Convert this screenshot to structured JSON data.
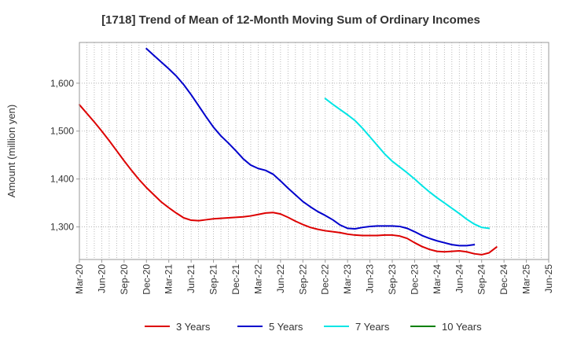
{
  "chart_data": {
    "type": "line",
    "title": "[1718]  Trend of Mean of 12-Month Moving Sum of Ordinary Incomes",
    "xlabel": "",
    "ylabel": "Amount (million yen)",
    "ylim": [
      1232,
      1685
    ],
    "yticks": [
      1300,
      1400,
      1500,
      1600
    ],
    "ytick_labels": [
      "1,300",
      "1,400",
      "1,500",
      "1,600"
    ],
    "x_start": "Mar-20",
    "x_end": "Jun-25",
    "xtick_labels": [
      "Mar-20",
      "Jun-20",
      "Sep-20",
      "Dec-20",
      "Mar-21",
      "Jun-21",
      "Sep-21",
      "Dec-21",
      "Mar-22",
      "Jun-22",
      "Sep-22",
      "Dec-22",
      "Mar-23",
      "Jun-23",
      "Sep-23",
      "Dec-23",
      "Mar-24",
      "Jun-24",
      "Sep-24",
      "Dec-24",
      "Mar-25",
      "Jun-25"
    ],
    "grid": true,
    "legend_position": "bottom",
    "series": [
      {
        "name": "3 Years",
        "color": "#dd0000",
        "start_index": 0,
        "values": [
          1555,
          1537,
          1519,
          1500,
          1480,
          1459,
          1438,
          1418,
          1399,
          1382,
          1367,
          1352,
          1340,
          1329,
          1319,
          1314,
          1313,
          1315,
          1317,
          1318,
          1319,
          1320,
          1321,
          1323,
          1326,
          1329,
          1330,
          1327,
          1320,
          1312,
          1305,
          1299,
          1295,
          1292,
          1290,
          1288,
          1285,
          1283,
          1282,
          1282,
          1282,
          1283,
          1283,
          1281,
          1276,
          1267,
          1259,
          1253,
          1249,
          1248,
          1249,
          1250,
          1248,
          1244,
          1242,
          1246,
          1258
        ]
      },
      {
        "name": "5 Years",
        "color": "#0000cc",
        "start_index": 9,
        "values": [
          1672,
          1658,
          1644,
          1630,
          1615,
          1597,
          1576,
          1553,
          1530,
          1508,
          1490,
          1475,
          1459,
          1442,
          1429,
          1422,
          1418,
          1410,
          1396,
          1381,
          1367,
          1353,
          1342,
          1332,
          1324,
          1315,
          1304,
          1297,
          1296,
          1299,
          1301,
          1302,
          1302,
          1302,
          1301,
          1297,
          1290,
          1282,
          1276,
          1271,
          1267,
          1263,
          1261,
          1261,
          1263
        ]
      },
      {
        "name": "7 Years",
        "color": "#00e5e5",
        "start_index": 33,
        "values": [
          1568,
          1556,
          1545,
          1534,
          1522,
          1506,
          1488,
          1470,
          1452,
          1437,
          1425,
          1413,
          1400,
          1386,
          1373,
          1361,
          1350,
          1339,
          1328,
          1316,
          1306,
          1299,
          1297
        ]
      },
      {
        "name": "10 Years",
        "color": "#008000",
        "start_index": 0,
        "values": []
      }
    ]
  }
}
